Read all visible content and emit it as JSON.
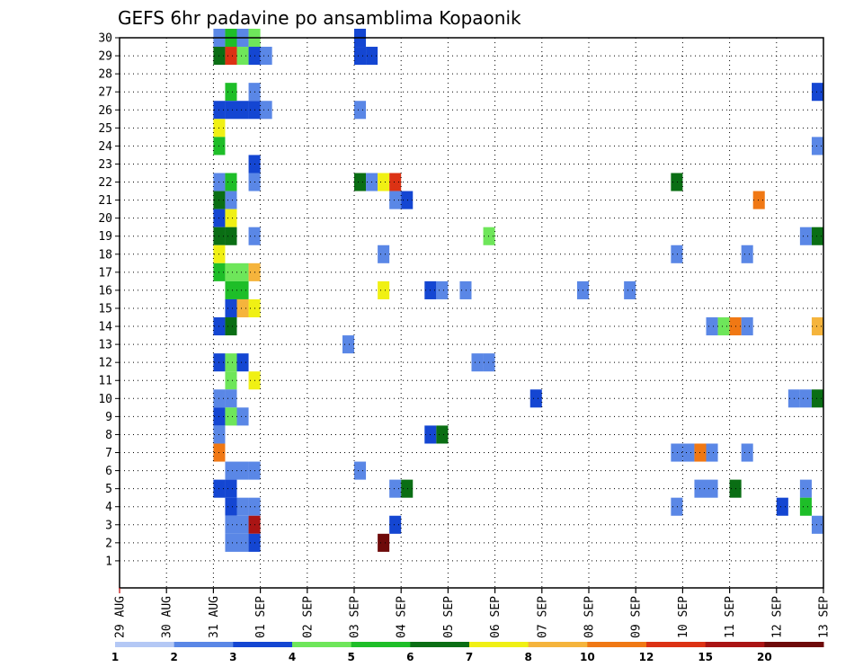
{
  "chart_data": {
    "type": "heatmap",
    "title": "GEFS 6hr padavine po ansamblima Kopaonik",
    "xlabel": "",
    "ylabel": "",
    "x_ticks": [
      "29 AUG",
      "30 AUG",
      "31 AUG",
      "01 SEP",
      "02 SEP",
      "03 SEP",
      "04 SEP",
      "05 SEP",
      "06 SEP",
      "07 SEP",
      "08 SEP",
      "09 SEP",
      "10 SEP",
      "11 SEP",
      "12 SEP",
      "13 SEP"
    ],
    "y_ticks": [
      "1",
      "2",
      "3",
      "4",
      "5",
      "6",
      "7",
      "8",
      "9",
      "10",
      "11",
      "12",
      "13",
      "14",
      "15",
      "16",
      "17",
      "18",
      "19",
      "20",
      "21",
      "22",
      "23",
      "24",
      "25",
      "26",
      "27",
      "28",
      "29",
      "30"
    ],
    "x_range": [
      0,
      60
    ],
    "y_range": [
      1,
      30
    ],
    "grid": true,
    "colorbar": {
      "labels": [
        "1",
        "2",
        "3",
        "4",
        "5",
        "6",
        "7",
        "8",
        "10",
        "12",
        "15",
        "20"
      ],
      "colors": [
        "#b4c8f5",
        "#5a87e6",
        "#1446d2",
        "#6ee65a",
        "#1ebe28",
        "#0a6e14",
        "#f0f014",
        "#f5b43c",
        "#f07814",
        "#dc3214",
        "#aa1414",
        "#6e0a0a"
      ]
    },
    "cells": [
      [
        30,
        8,
        1
      ],
      [
        30,
        9,
        4
      ],
      [
        30,
        10,
        1
      ],
      [
        30,
        11,
        3
      ],
      [
        30,
        20,
        2
      ],
      [
        29,
        8,
        5
      ],
      [
        29,
        9,
        9
      ],
      [
        29,
        10,
        3
      ],
      [
        29,
        11,
        2
      ],
      [
        29,
        12,
        1
      ],
      [
        29,
        20,
        2
      ],
      [
        29,
        21,
        2
      ],
      [
        27,
        9,
        4
      ],
      [
        27,
        11,
        1
      ],
      [
        27,
        59,
        2
      ],
      [
        26,
        8,
        2
      ],
      [
        26,
        9,
        2
      ],
      [
        26,
        10,
        2
      ],
      [
        26,
        11,
        2
      ],
      [
        26,
        12,
        1
      ],
      [
        26,
        20,
        1
      ],
      [
        25,
        8,
        6
      ],
      [
        24,
        8,
        4
      ],
      [
        24,
        59,
        1
      ],
      [
        23,
        11,
        2
      ],
      [
        22,
        8,
        1
      ],
      [
        22,
        9,
        4
      ],
      [
        22,
        11,
        1
      ],
      [
        22,
        20,
        5
      ],
      [
        22,
        21,
        1
      ],
      [
        22,
        22,
        6
      ],
      [
        22,
        23,
        9
      ],
      [
        22,
        47,
        5
      ],
      [
        21,
        8,
        5
      ],
      [
        21,
        9,
        1
      ],
      [
        21,
        23,
        1
      ],
      [
        21,
        24,
        2
      ],
      [
        21,
        54,
        8
      ],
      [
        20,
        8,
        2
      ],
      [
        20,
        9,
        6
      ],
      [
        19,
        8,
        5
      ],
      [
        19,
        9,
        5
      ],
      [
        19,
        11,
        1
      ],
      [
        19,
        31,
        3
      ],
      [
        19,
        58,
        1
      ],
      [
        19,
        59,
        5
      ],
      [
        18,
        8,
        6
      ],
      [
        18,
        22,
        1
      ],
      [
        18,
        47,
        1
      ],
      [
        18,
        53,
        1
      ],
      [
        17,
        8,
        4
      ],
      [
        17,
        9,
        3
      ],
      [
        17,
        10,
        3
      ],
      [
        17,
        11,
        7
      ],
      [
        16,
        9,
        4
      ],
      [
        16,
        10,
        4
      ],
      [
        16,
        22,
        6
      ],
      [
        16,
        26,
        2
      ],
      [
        16,
        27,
        1
      ],
      [
        16,
        29,
        1
      ],
      [
        16,
        39,
        1
      ],
      [
        16,
        43,
        1
      ],
      [
        15,
        9,
        2
      ],
      [
        15,
        10,
        7
      ],
      [
        15,
        11,
        6
      ],
      [
        14,
        8,
        2
      ],
      [
        14,
        9,
        5
      ],
      [
        14,
        50,
        1
      ],
      [
        14,
        51,
        3
      ],
      [
        14,
        52,
        8
      ],
      [
        14,
        53,
        1
      ],
      [
        14,
        59,
        7
      ],
      [
        13,
        19,
        1
      ],
      [
        12,
        8,
        2
      ],
      [
        12,
        9,
        3
      ],
      [
        12,
        10,
        2
      ],
      [
        12,
        30,
        1
      ],
      [
        12,
        31,
        1
      ],
      [
        11,
        9,
        3
      ],
      [
        11,
        11,
        6
      ],
      [
        10,
        8,
        1
      ],
      [
        10,
        9,
        1
      ],
      [
        10,
        35,
        2
      ],
      [
        10,
        57,
        1
      ],
      [
        10,
        58,
        1
      ],
      [
        10,
        59,
        5
      ],
      [
        9,
        8,
        2
      ],
      [
        9,
        9,
        3
      ],
      [
        9,
        10,
        1
      ],
      [
        8,
        8,
        1
      ],
      [
        8,
        26,
        2
      ],
      [
        8,
        27,
        5
      ],
      [
        7,
        8,
        8
      ],
      [
        7,
        47,
        1
      ],
      [
        7,
        48,
        1
      ],
      [
        7,
        49,
        8
      ],
      [
        7,
        50,
        1
      ],
      [
        7,
        53,
        1
      ],
      [
        6,
        9,
        1
      ],
      [
        6,
        10,
        1
      ],
      [
        6,
        11,
        1
      ],
      [
        6,
        20,
        1
      ],
      [
        5,
        8,
        2
      ],
      [
        5,
        9,
        2
      ],
      [
        5,
        23,
        1
      ],
      [
        5,
        24,
        5
      ],
      [
        5,
        49,
        1
      ],
      [
        5,
        50,
        1
      ],
      [
        5,
        52,
        5
      ],
      [
        5,
        58,
        1
      ],
      [
        4,
        9,
        2
      ],
      [
        4,
        10,
        1
      ],
      [
        4,
        11,
        1
      ],
      [
        4,
        47,
        1
      ],
      [
        4,
        56,
        2
      ],
      [
        4,
        58,
        4
      ],
      [
        3,
        9,
        1
      ],
      [
        3,
        10,
        1
      ],
      [
        3,
        11,
        10
      ],
      [
        3,
        23,
        2
      ],
      [
        3,
        59,
        1
      ],
      [
        2,
        9,
        1
      ],
      [
        2,
        10,
        1
      ],
      [
        2,
        11,
        2
      ],
      [
        2,
        22,
        11
      ]
    ]
  }
}
